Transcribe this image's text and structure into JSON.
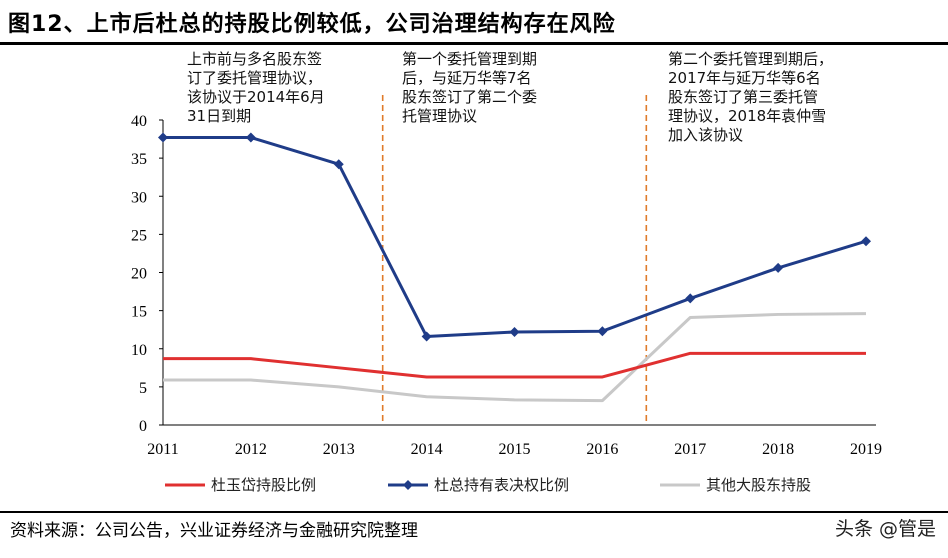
{
  "title": "图12、上市后杜总的持股比例较低，公司治理结构存在风险",
  "annotations": [
    "上市前与多名股东签\n订了委托管理协议，\n该协议于2014年6月\n31日到期",
    "第一个委托管理到期\n后，与延万华等7名\n股东签订了第二个委\n托管理协议",
    "第二个委托管理到期后，\n2017年与延万华等6名\n股东签订了第三委托管\n理协议，2018年袁仲雪\n加入该协议"
  ],
  "source": "资料来源：公司公告，兴业证券经济与金融研究院整理",
  "watermark": "头条 @管是",
  "chart_data": {
    "type": "line",
    "title": "",
    "xlabel": "",
    "ylabel": "",
    "x": [
      "2011",
      "2012",
      "2013",
      "2014",
      "2015",
      "2016",
      "2017",
      "2018",
      "2019"
    ],
    "ylim": [
      0,
      40
    ],
    "yticks": [
      "0",
      "5",
      "10",
      "15",
      "20",
      "25",
      "30",
      "35",
      "40"
    ],
    "grid": false,
    "legend": "bottom",
    "vlines": [
      2013.5,
      2016.5
    ],
    "vline_color": "#E07B2A",
    "series": [
      {
        "name": "杜玉岱持股比例",
        "color": "#E03030",
        "marker": "none",
        "values": [
          8.7,
          8.7,
          7.5,
          6.3,
          6.3,
          6.3,
          9.4,
          9.4,
          9.4
        ]
      },
      {
        "name": "杜总持有表决权比例",
        "color": "#1F3C88",
        "marker": "diamond",
        "values": [
          37.7,
          37.7,
          34.2,
          11.6,
          12.2,
          12.3,
          16.6,
          20.6,
          24.1
        ]
      },
      {
        "name": "其他大股东持股",
        "color": "#C8C8C8",
        "marker": "none",
        "values": [
          5.9,
          5.9,
          5.0,
          3.7,
          3.3,
          3.2,
          14.1,
          14.5,
          14.6
        ]
      }
    ]
  }
}
